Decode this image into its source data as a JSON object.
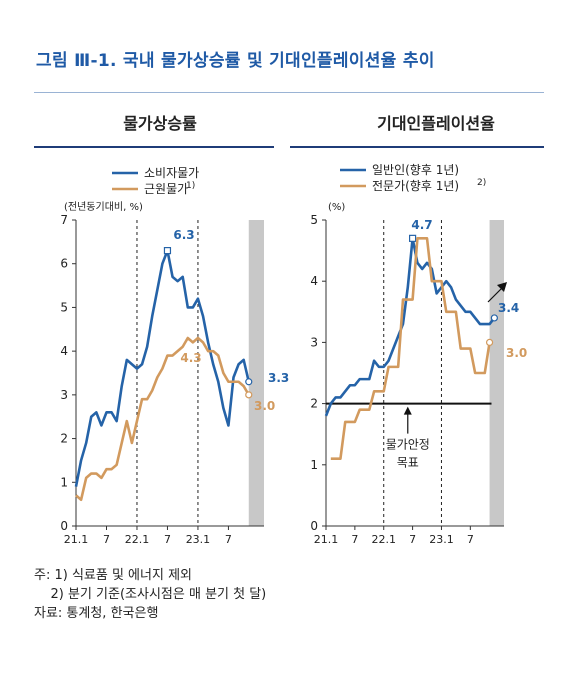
{
  "figure_title": "그림 Ⅲ-1. 국내 물가상승률 및 기대인플레이션율 추이",
  "colors": {
    "title": "#1f5aa6",
    "blue": "#2563a8",
    "orange": "#d29a5e",
    "shade": "#c8c8c8"
  },
  "chart_data": [
    {
      "type": "line",
      "panel_title": "물가상승률",
      "unit_label": "(전년동기대비, %)",
      "ylim": [
        0,
        7
      ],
      "yticks": [
        "0",
        "1",
        "2",
        "3",
        "4",
        "5",
        "6",
        "7"
      ],
      "x_tick_labels": [
        "21.1",
        "7",
        "22.1",
        "7",
        "23.1",
        "7"
      ],
      "x_tick_positions": [
        1,
        7,
        13,
        19,
        25,
        31
      ],
      "x_range": [
        1,
        38
      ],
      "dashed_vlines": [
        13,
        25
      ],
      "shaded_from": 35,
      "series": [
        {
          "name": "소비자물가",
          "color": "#2563a8",
          "start_x": 1,
          "values": [
            0.9,
            1.5,
            1.9,
            2.5,
            2.6,
            2.3,
            2.6,
            2.6,
            2.4,
            3.2,
            3.8,
            3.7,
            3.6,
            3.7,
            4.1,
            4.8,
            5.4,
            6.0,
            6.3,
            5.7,
            5.6,
            5.7,
            5.0,
            5.0,
            5.2,
            4.8,
            4.2,
            3.7,
            3.3,
            2.7,
            2.3,
            3.4,
            3.7,
            3.8,
            3.3
          ],
          "end_label": "3.3",
          "peak_label": "6.3",
          "peak_index": 18
        },
        {
          "name": "근원물가",
          "name_note": "1)",
          "color": "#d29a5e",
          "start_x": 1,
          "values": [
            0.7,
            0.6,
            1.1,
            1.2,
            1.2,
            1.1,
            1.3,
            1.3,
            1.4,
            1.9,
            2.4,
            1.9,
            2.4,
            2.9,
            2.9,
            3.1,
            3.4,
            3.6,
            3.9,
            3.9,
            4.0,
            4.1,
            4.3,
            4.2,
            4.3,
            4.2,
            4.0,
            4.0,
            3.9,
            3.5,
            3.3,
            3.3,
            3.3,
            3.2,
            3.0
          ],
          "end_label": "3.0",
          "peak_label": "4.3",
          "peak_index": 22
        }
      ]
    },
    {
      "type": "line",
      "panel_title": "기대인플레이션율",
      "unit_label": "(%)",
      "ylim": [
        0,
        5
      ],
      "yticks": [
        "0",
        "1",
        "2",
        "3",
        "4",
        "5"
      ],
      "x_tick_labels": [
        "21.1",
        "7",
        "22.1",
        "7",
        "23.1",
        "7"
      ],
      "x_tick_positions": [
        1,
        7,
        13,
        19,
        25,
        31
      ],
      "x_range": [
        1,
        38
      ],
      "dashed_vlines": [
        13,
        25
      ],
      "shaded_from": 35,
      "hline": 2,
      "hline_label": [
        "물가안정",
        "목표"
      ],
      "series": [
        {
          "name": "일반인(향후 1년)",
          "color": "#2563a8",
          "start_x": 1,
          "values": [
            1.8,
            2.0,
            2.1,
            2.1,
            2.2,
            2.3,
            2.3,
            2.4,
            2.4,
            2.4,
            2.7,
            2.6,
            2.6,
            2.7,
            2.9,
            3.1,
            3.3,
            3.9,
            4.7,
            4.3,
            4.2,
            4.3,
            4.2,
            3.8,
            3.9,
            4.0,
            3.9,
            3.7,
            3.6,
            3.5,
            3.5,
            3.4,
            3.3,
            3.3,
            3.3,
            3.4
          ],
          "end_label": "3.4",
          "peak_label": "4.7",
          "peak_index": 18
        },
        {
          "name": "전문가(향후 1년)",
          "name_note": "2)",
          "color": "#d29a5e",
          "start_x": 2,
          "values": [
            1.1,
            1.1,
            1.1,
            1.7,
            1.7,
            1.7,
            1.9,
            1.9,
            1.9,
            2.2,
            2.2,
            2.2,
            2.6,
            2.6,
            2.6,
            3.7,
            3.7,
            3.7,
            4.7,
            4.7,
            4.7,
            4.0,
            4.0,
            4.0,
            3.5,
            3.5,
            3.5,
            2.9,
            2.9,
            2.9,
            2.5,
            2.5,
            2.5,
            3.0
          ],
          "end_label": "3.0"
        }
      ]
    }
  ],
  "notes": [
    "주: 1) 식료품 및 에너지 제외",
    "    2) 분기 기준(조사시점은 매 분기 첫 달)",
    "자료: 통계청, 한국은행"
  ]
}
